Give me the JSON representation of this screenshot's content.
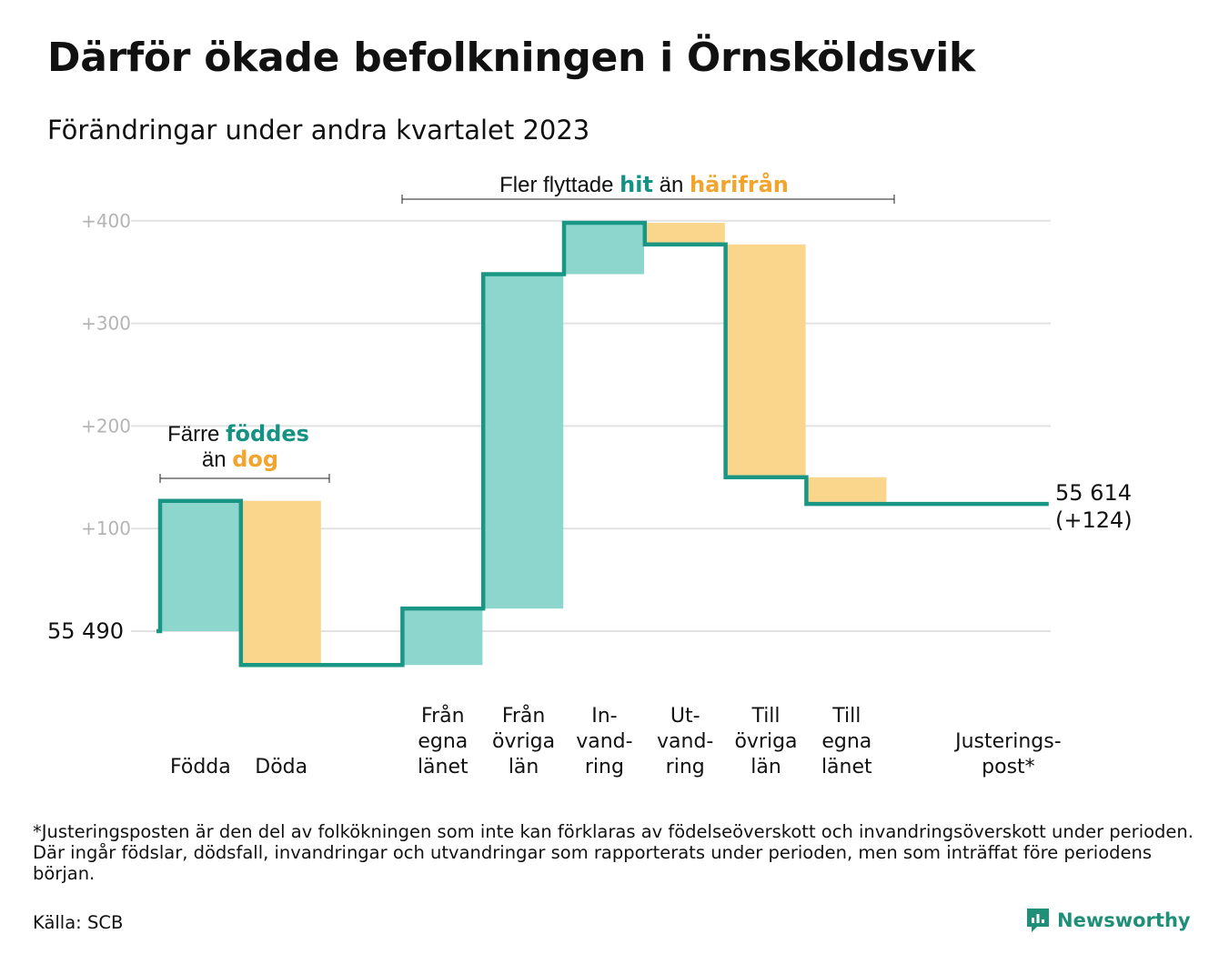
{
  "title": "Därför ökade befolkningen i Örnsköldsvik",
  "subtitle": "Förändringar under andra kvartalet 2023",
  "chart_data": {
    "type": "waterfall",
    "start_value": 55490,
    "start_label": "55  490",
    "end_label_line1": "55 614",
    "end_label_line2": "(+124)",
    "ylim": [
      -60,
      420
    ],
    "yticks": [
      100,
      200,
      300,
      400
    ],
    "ytick_labels": [
      "+100",
      "+200",
      "+300",
      "+400"
    ],
    "grid": true,
    "categories": [
      {
        "lines": [
          "Födda"
        ],
        "delta": 127,
        "kind": "in"
      },
      {
        "lines": [
          "Döda"
        ],
        "delta": -160,
        "kind": "out"
      },
      {
        "lines": [],
        "delta": 0,
        "kind": "gap"
      },
      {
        "lines": [
          "Från",
          "egna",
          "länet"
        ],
        "delta": 55,
        "kind": "in"
      },
      {
        "lines": [
          "Från",
          "övriga",
          "län"
        ],
        "delta": 326,
        "kind": "in"
      },
      {
        "lines": [
          "In-",
          "vand-",
          "ring"
        ],
        "delta": 50,
        "kind": "in"
      },
      {
        "lines": [
          "Ut-",
          "vand-",
          "ring"
        ],
        "delta": -21,
        "kind": "out"
      },
      {
        "lines": [
          "Till",
          "övriga",
          "län"
        ],
        "delta": -227,
        "kind": "out"
      },
      {
        "lines": [
          "Till",
          "egna",
          "länet"
        ],
        "delta": -26,
        "kind": "out"
      },
      {
        "lines": [],
        "delta": 0,
        "kind": "gap"
      },
      {
        "lines": [
          "Justerings-",
          "post*"
        ],
        "delta": 0,
        "kind": "adjust"
      }
    ],
    "annotations": {
      "births": {
        "line1_prefix": "Färre ",
        "line1_highlight": "föddes",
        "line2_prefix": "än ",
        "line2_highlight": "dog"
      },
      "migration": {
        "prefix": "Fler flyttade ",
        "highlight_in": "hit",
        "middle": " än ",
        "highlight_out": "härifrån"
      }
    },
    "colors": {
      "in": "#8dd6ce",
      "out": "#fad58c",
      "line": "#1a9685",
      "hi_text": "#159283",
      "lo_text": "#f2a42c",
      "grid": "#e2e2e2"
    }
  },
  "footnote": "*Justeringsposten är den del av folkökningen som inte kan förklaras av födelseöverskott och invandringsöverskott under perioden. Där ingår födslar, dödsfall, invandringar och utvandringar som rapporterats under perioden, men som inträffat före periodens början.",
  "source": "Källa: SCB",
  "brand": {
    "name": "Newsworthy",
    "icon": "newsworthy-logo-icon"
  }
}
